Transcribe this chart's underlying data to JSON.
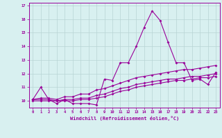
{
  "xlabel": "Windchill (Refroidissement éolien,°C)",
  "x": [
    0,
    1,
    2,
    3,
    4,
    5,
    6,
    7,
    8,
    9,
    10,
    11,
    12,
    13,
    14,
    15,
    16,
    17,
    18,
    19,
    20,
    21,
    22,
    23
  ],
  "line1": [
    10.1,
    11.0,
    10.1,
    9.8,
    10.1,
    9.8,
    9.8,
    9.8,
    9.7,
    11.6,
    11.5,
    12.8,
    12.8,
    14.0,
    15.4,
    16.6,
    15.9,
    14.3,
    12.8,
    12.8,
    11.5,
    11.6,
    11.2,
    12.1
  ],
  "line2": [
    10.1,
    10.2,
    10.2,
    10.1,
    10.3,
    10.3,
    10.5,
    10.5,
    10.8,
    10.9,
    11.1,
    11.3,
    11.5,
    11.7,
    11.8,
    11.9,
    12.0,
    12.1,
    12.2,
    12.3,
    12.3,
    12.4,
    12.5,
    12.6
  ],
  "line3": [
    10.1,
    10.1,
    10.1,
    10.0,
    10.1,
    10.1,
    10.2,
    10.2,
    10.4,
    10.5,
    10.7,
    10.9,
    11.0,
    11.2,
    11.3,
    11.4,
    11.5,
    11.6,
    11.6,
    11.7,
    11.8,
    11.8,
    11.9,
    12.0
  ],
  "line4": [
    10.0,
    10.0,
    10.0,
    10.0,
    10.0,
    10.0,
    10.1,
    10.1,
    10.2,
    10.3,
    10.5,
    10.7,
    10.8,
    11.0,
    11.1,
    11.2,
    11.3,
    11.4,
    11.5,
    11.5,
    11.6,
    11.7,
    11.7,
    11.8
  ],
  "line_color": "#990099",
  "bg_color": "#d8f0f0",
  "grid_color": "#b8d4d4",
  "ylim": [
    9.5,
    17.2
  ],
  "xlim": [
    -0.5,
    23.5
  ],
  "yticks": [
    10,
    11,
    12,
    13,
    14,
    15,
    16,
    17
  ],
  "xticks": [
    0,
    1,
    2,
    3,
    4,
    5,
    6,
    7,
    8,
    9,
    10,
    11,
    12,
    13,
    14,
    15,
    16,
    17,
    18,
    19,
    20,
    21,
    22,
    23
  ]
}
